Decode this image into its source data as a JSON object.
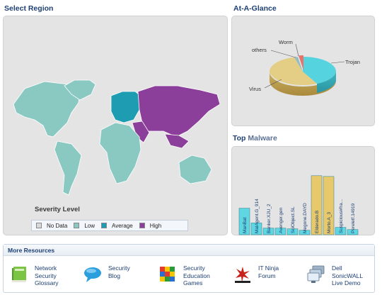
{
  "sections": {
    "select_region": "Select Region",
    "at_a_glance": "At-A-Glance",
    "top_malware_prefix": "Top",
    "top_malware_suffix": "Malware",
    "more_resources": "More Resources"
  },
  "severity": {
    "title": "Severity Level",
    "levels": [
      {
        "label": "No Data",
        "color": "#d9d9d9"
      },
      {
        "label": "Low",
        "color": "#8ac8c2"
      },
      {
        "label": "Average",
        "color": "#1e9cb2"
      },
      {
        "label": "High",
        "color": "#8b3f9a"
      }
    ]
  },
  "regions": [
    {
      "name": "North America",
      "level": "Low"
    },
    {
      "name": "Greenland",
      "level": "Low"
    },
    {
      "name": "South America",
      "level": "Low"
    },
    {
      "name": "Europe",
      "level": "Average"
    },
    {
      "name": "Russia & Asia",
      "level": "High"
    },
    {
      "name": "Middle East",
      "level": "High"
    },
    {
      "name": "Africa",
      "level": "Low"
    },
    {
      "name": "Southeast Asia",
      "level": "High"
    },
    {
      "name": "Australia",
      "level": "Low"
    }
  ],
  "glance": {
    "slices": [
      {
        "label": "Trojan",
        "color": "#55d3de"
      },
      {
        "label": "Virus",
        "color": "#e4cd84"
      },
      {
        "label": "others",
        "color": "#8fbec6"
      },
      {
        "label": "Worm",
        "color": "#e9726b"
      }
    ]
  },
  "chart_data": {
    "type": "bar",
    "categories": [
      "ManBat",
      "MalAgent.G_914",
      "Banker.XJU_2",
      "Avenger.gen",
      "SciObject.SL",
      "Megone.DAYD",
      "Elderado.B",
      "Morto.A_3",
      "Suspicious#fra...",
      "Pereletf.14919"
    ],
    "values": [
      36,
      16,
      9,
      9,
      8,
      6,
      80,
      79,
      10,
      7
    ],
    "colors": [
      "#5fd6e2",
      "#5fd6e2",
      "#5fd6e2",
      "#5fd6e2",
      "#5fd6e2",
      "#5fd6e2",
      "#e7c96b",
      "#e7c96b",
      "#5fd6e2",
      "#5fd6e2"
    ],
    "ylim": [
      0,
      100
    ]
  },
  "resources": [
    {
      "label": "Network\nSecurity\nGlossary",
      "icon": "book-icon"
    },
    {
      "label": "Security\nBlog",
      "icon": "speech-bubble-icon"
    },
    {
      "label": "Security\nEducation\nGames",
      "icon": "puzzle-cube-icon"
    },
    {
      "label": "IT Ninja\nForum",
      "icon": "ninja-logo-icon"
    },
    {
      "label": "Dell\nSonicWALL\nLive Demo",
      "icon": "monitor-stack-icon"
    }
  ]
}
